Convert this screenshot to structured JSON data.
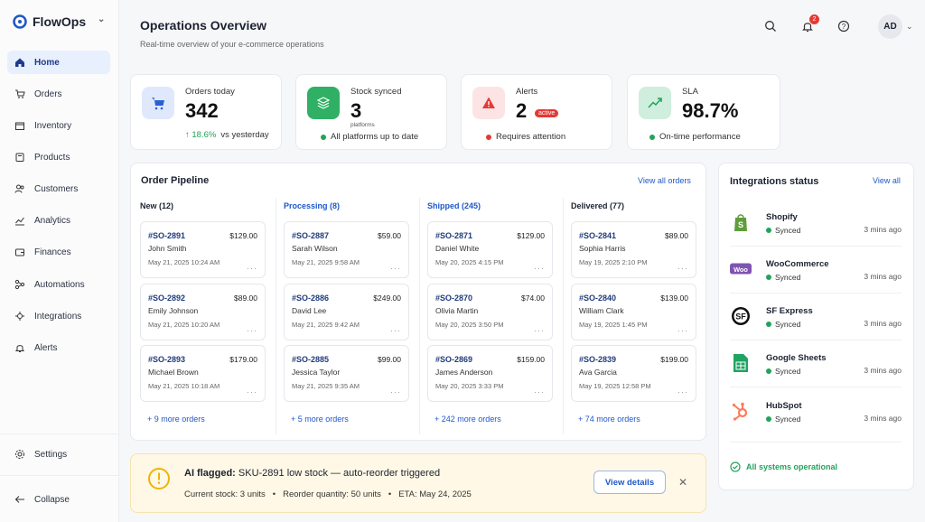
{
  "brand": {
    "name": "FlowOps"
  },
  "sidebar": {
    "items": [
      {
        "label": "Home",
        "icon": "home-icon"
      },
      {
        "label": "Orders",
        "icon": "cart-icon"
      },
      {
        "label": "Inventory",
        "icon": "box-icon"
      },
      {
        "label": "Products",
        "icon": "tag-icon"
      },
      {
        "label": "Customers",
        "icon": "users-icon"
      },
      {
        "label": "Analytics",
        "icon": "chart-icon"
      },
      {
        "label": "Finances",
        "icon": "wallet-icon"
      },
      {
        "label": "Automations",
        "icon": "automation-icon"
      },
      {
        "label": "Integrations",
        "icon": "plug-icon"
      },
      {
        "label": "Alerts",
        "icon": "bell-icon"
      }
    ],
    "settings": "Settings",
    "collapse": "Collapse"
  },
  "header": {
    "title": "Operations Overview",
    "subtitle": "Real-time overview of your e-commerce operations",
    "notification_count": "2",
    "avatar": "AD"
  },
  "stats": {
    "orders": {
      "label": "Orders today",
      "value": "342",
      "delta": "↑ 18.6%",
      "delta_suffix": "vs yesterday"
    },
    "stock": {
      "label": "Stock synced",
      "value": "3",
      "unit": "platforms",
      "note": "All platforms up to date"
    },
    "alerts": {
      "label": "Alerts",
      "value": "2",
      "badge": "active",
      "note": "Requires attention"
    },
    "sla": {
      "label": "SLA",
      "value": "98.7%",
      "note": "On-time performance"
    }
  },
  "pipeline": {
    "title": "Order Pipeline",
    "view_all": "View all orders",
    "columns": [
      {
        "title": "New (12)",
        "color": "#1b2230",
        "more": "+ 9 more orders",
        "orders": [
          {
            "id": "#SO-2891",
            "amount": "$129.00",
            "name": "John Smith",
            "date": "May 21, 2025 10:24 AM"
          },
          {
            "id": "#SO-2892",
            "amount": "$89.00",
            "name": "Emily Johnson",
            "date": "May 21, 2025 10:20 AM"
          },
          {
            "id": "#SO-2893",
            "amount": "$179.00",
            "name": "Michael Brown",
            "date": "May 21, 2025 10:18 AM"
          }
        ]
      },
      {
        "title": "Processing (8)",
        "color": "#1f57c9",
        "more": "+ 5 more orders",
        "orders": [
          {
            "id": "#SO-2887",
            "amount": "$59.00",
            "name": "Sarah Wilson",
            "date": "May 21, 2025 9:58 AM"
          },
          {
            "id": "#SO-2886",
            "amount": "$249.00",
            "name": "David Lee",
            "date": "May 21, 2025 9:42 AM"
          },
          {
            "id": "#SO-2885",
            "amount": "$99.00",
            "name": "Jessica Taylor",
            "date": "May 21, 2025 9:35 AM"
          }
        ]
      },
      {
        "title": "Shipped (245)",
        "color": "#1f57c9",
        "more": "+ 242 more orders",
        "orders": [
          {
            "id": "#SO-2871",
            "amount": "$129.00",
            "name": "Daniel White",
            "date": "May 20, 2025 4:15 PM"
          },
          {
            "id": "#SO-2870",
            "amount": "$74.00",
            "name": "Olivia Martin",
            "date": "May 20, 2025 3:50 PM"
          },
          {
            "id": "#SO-2869",
            "amount": "$159.00",
            "name": "James Anderson",
            "date": "May 20, 2025 3:33 PM"
          }
        ]
      },
      {
        "title": "Delivered (77)",
        "color": "#1b2230",
        "more": "+ 74 more orders",
        "orders": [
          {
            "id": "#SO-2841",
            "amount": "$89.00",
            "name": "Sophia Harris",
            "date": "May 19, 2025 2:10 PM"
          },
          {
            "id": "#SO-2840",
            "amount": "$139.00",
            "name": "William Clark",
            "date": "May 19, 2025 1:45 PM"
          },
          {
            "id": "#SO-2839",
            "amount": "$199.00",
            "name": "Ava Garcia",
            "date": "May 19, 2025 12:58 PM"
          }
        ]
      }
    ]
  },
  "integrations": {
    "title": "Integrations status",
    "view_all": "View all",
    "items": [
      {
        "name": "Shopify",
        "status": "Synced",
        "time": "3 mins ago",
        "icon": "shopify-icon"
      },
      {
        "name": "WooCommerce",
        "status": "Synced",
        "time": "3 mins ago",
        "icon": "woocommerce-icon"
      },
      {
        "name": "SF Express",
        "status": "Synced",
        "time": "3 mins ago",
        "icon": "sf-express-icon"
      },
      {
        "name": "Google Sheets",
        "status": "Synced",
        "time": "3 mins ago",
        "icon": "google-sheets-icon"
      },
      {
        "name": "HubSpot",
        "status": "Synced",
        "time": "3 mins ago",
        "icon": "hubspot-icon"
      }
    ],
    "footer": "All systems operational"
  },
  "ai_alert": {
    "prefix": "AI flagged:",
    "message": "SKU-2891 low stock — auto-reorder triggered",
    "stock": "Current stock: 3 units",
    "reorder": "Reorder quantity: 50 units",
    "eta": "ETA: May 24, 2025",
    "button": "View details"
  },
  "colors": {
    "accent": "#1f57c9",
    "success": "#22a35a",
    "danger": "#e53935",
    "warning": "#f0b400"
  }
}
